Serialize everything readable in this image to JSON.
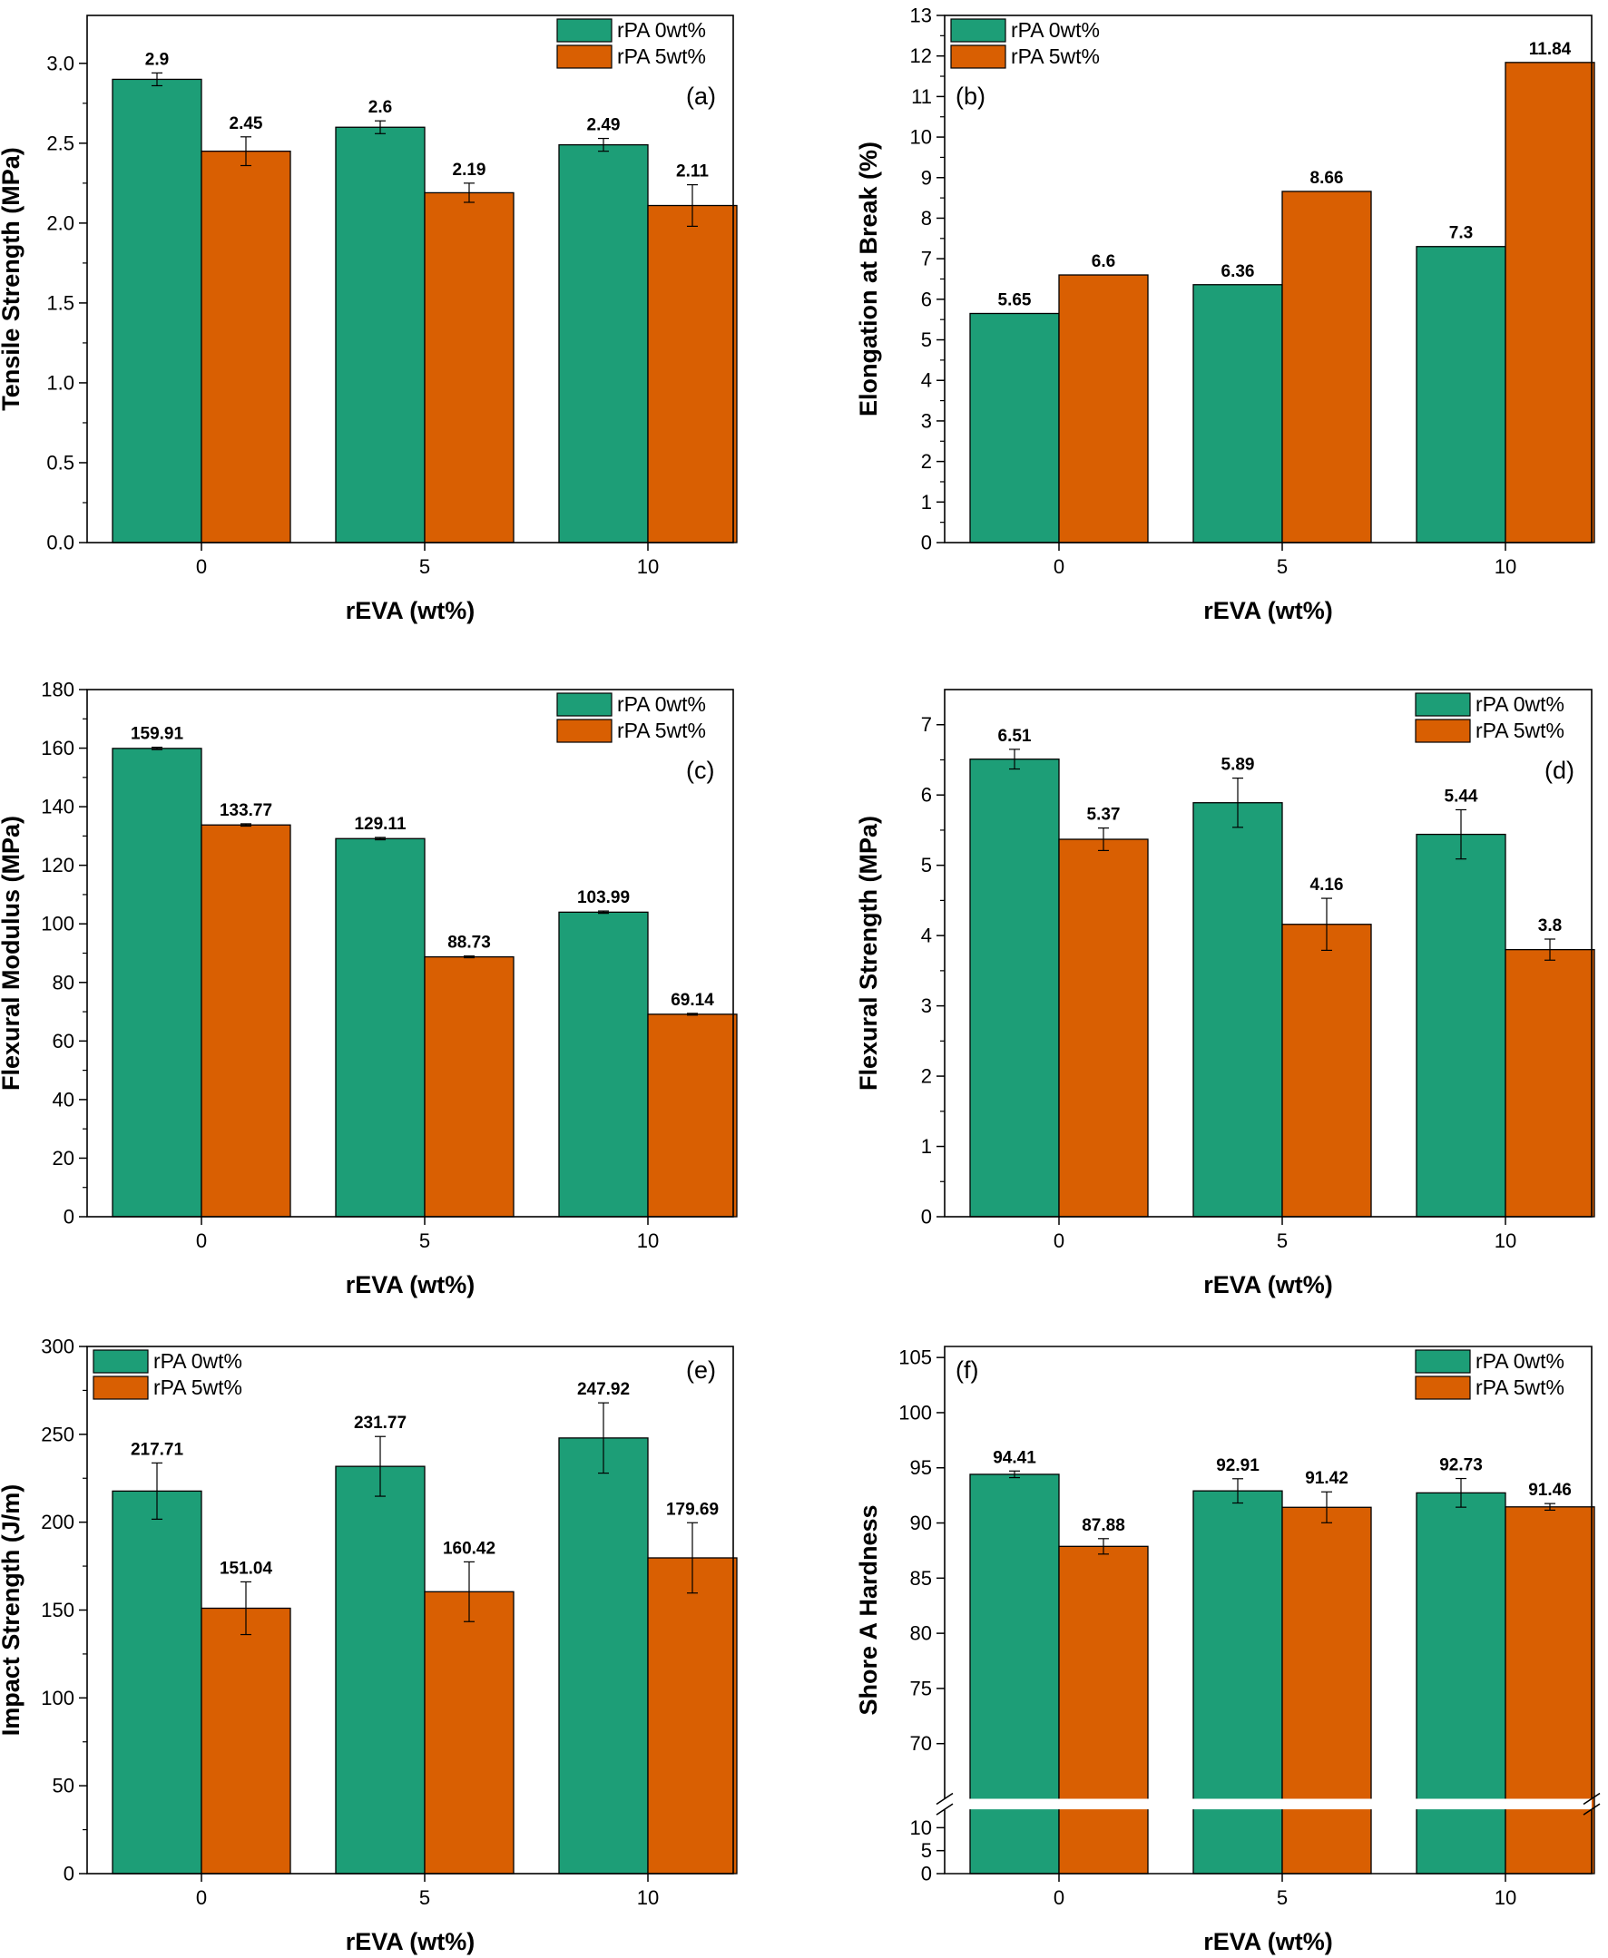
{
  "colors": {
    "series_0": "#1d9e77",
    "series_1": "#d95f02",
    "axis": "#000000",
    "background": "#ffffff"
  },
  "chart_data": [
    {
      "type": "bar",
      "panel_label": "(a)",
      "ylabel": "Tensile Strength (MPa)",
      "xlabel": "rEVA (wt%)",
      "categories": [
        "0",
        "5",
        "10"
      ],
      "ylim": [
        0,
        3.3
      ],
      "yticks": [
        "0.0",
        "0.5",
        "1.0",
        "1.5",
        "2.0",
        "2.5",
        "3.0"
      ],
      "legend_position": "top-right",
      "series": [
        {
          "name": "rPA 0wt%",
          "values": [
            2.9,
            2.6,
            2.49
          ],
          "labels": [
            "2.9",
            "2.6",
            "2.49"
          ],
          "errors": [
            0.04,
            0.04,
            0.04
          ]
        },
        {
          "name": "rPA 5wt%",
          "values": [
            2.45,
            2.19,
            2.11
          ],
          "labels": [
            "2.45",
            "2.19",
            "2.11"
          ],
          "errors": [
            0.09,
            0.06,
            0.13
          ]
        }
      ]
    },
    {
      "type": "bar",
      "panel_label": "(b)",
      "ylabel": "Elongation at Break (%)",
      "xlabel": "rEVA (wt%)",
      "categories": [
        "0",
        "5",
        "10"
      ],
      "ylim": [
        0,
        13
      ],
      "yticks": [
        "0",
        "1",
        "2",
        "3",
        "4",
        "5",
        "6",
        "7",
        "8",
        "9",
        "10",
        "11",
        "12",
        "13"
      ],
      "legend_position": "top-left",
      "series": [
        {
          "name": "rPA 0wt%",
          "values": [
            5.65,
            6.36,
            7.3
          ],
          "labels": [
            "5.65",
            "6.36",
            "7.3"
          ],
          "errors": [
            0,
            0,
            0
          ]
        },
        {
          "name": "rPA 5wt%",
          "values": [
            6.6,
            8.66,
            11.84
          ],
          "labels": [
            "6.6",
            "8.66",
            "11.84"
          ],
          "errors": [
            0,
            0,
            0
          ]
        }
      ]
    },
    {
      "type": "bar",
      "panel_label": "(c)",
      "ylabel": "Flexural Modulus (MPa)",
      "xlabel": "rEVA (wt%)",
      "categories": [
        "0",
        "5",
        "10"
      ],
      "ylim": [
        0,
        180
      ],
      "yticks": [
        "0",
        "20",
        "40",
        "60",
        "80",
        "100",
        "120",
        "140",
        "160",
        "180"
      ],
      "legend_position": "top-right",
      "series": [
        {
          "name": "rPA 0wt%",
          "values": [
            159.91,
            129.11,
            103.99
          ],
          "labels": [
            "159.91",
            "129.11",
            "103.99"
          ],
          "errors": [
            0.4,
            0.4,
            0.4
          ]
        },
        {
          "name": "rPA 5wt%",
          "values": [
            133.77,
            88.73,
            69.14
          ],
          "labels": [
            "133.77",
            "88.73",
            "69.14"
          ],
          "errors": [
            0.4,
            0.3,
            0.3
          ]
        }
      ]
    },
    {
      "type": "bar",
      "panel_label": "(d)",
      "ylabel": "Flexural Strength (MPa)",
      "xlabel": "rEVA (wt%)",
      "categories": [
        "0",
        "5",
        "10"
      ],
      "ylim": [
        0,
        7.5
      ],
      "yticks": [
        "0",
        "1",
        "2",
        "3",
        "4",
        "5",
        "6",
        "7"
      ],
      "legend_position": "top-right",
      "series": [
        {
          "name": "rPA 0wt%",
          "values": [
            6.51,
            5.89,
            5.44
          ],
          "labels": [
            "6.51",
            "5.89",
            "5.44"
          ],
          "errors": [
            0.14,
            0.35,
            0.35
          ]
        },
        {
          "name": "rPA 5wt%",
          "values": [
            5.37,
            4.16,
            3.8
          ],
          "labels": [
            "5.37",
            "4.16",
            "3.8"
          ],
          "errors": [
            0.16,
            0.37,
            0.15
          ]
        }
      ]
    },
    {
      "type": "bar",
      "panel_label": "(e)",
      "ylabel": "Impact Strength (J/m)",
      "xlabel": "rEVA (wt%)",
      "categories": [
        "0",
        "5",
        "10"
      ],
      "ylim": [
        0,
        300
      ],
      "yticks": [
        "0",
        "50",
        "100",
        "150",
        "200",
        "250",
        "300"
      ],
      "legend_position": "top-left",
      "series": [
        {
          "name": "rPA 0wt%",
          "values": [
            217.71,
            231.77,
            247.92
          ],
          "labels": [
            "217.71",
            "231.77",
            "247.92"
          ],
          "errors": [
            16,
            17,
            20
          ]
        },
        {
          "name": "rPA 5wt%",
          "values": [
            151.04,
            160.42,
            179.69
          ],
          "labels": [
            "151.04",
            "160.42",
            "179.69"
          ],
          "errors": [
            15,
            17,
            20
          ]
        }
      ]
    },
    {
      "type": "bar",
      "panel_label": "(f)",
      "ylabel": "Shore A Hardness",
      "xlabel": "rEVA (wt%)",
      "categories": [
        "0",
        "5",
        "10"
      ],
      "axis_break": [
        12,
        65
      ],
      "ylim_lower": [
        0,
        14
      ],
      "ylim_upper": [
        65,
        106
      ],
      "yticks_lower": [
        "0",
        "5",
        "10"
      ],
      "yticks_upper": [
        "70",
        "75",
        "80",
        "85",
        "90",
        "95",
        "100",
        "105"
      ],
      "legend_position": "top-right",
      "series": [
        {
          "name": "rPA 0wt%",
          "values": [
            94.41,
            92.91,
            92.73
          ],
          "labels": [
            "94.41",
            "92.91",
            "92.73"
          ],
          "errors": [
            0.3,
            1.1,
            1.3
          ]
        },
        {
          "name": "rPA 5wt%",
          "values": [
            87.88,
            91.42,
            91.46
          ],
          "labels": [
            "87.88",
            "91.42",
            "91.46"
          ],
          "errors": [
            0.7,
            1.4,
            0.3
          ]
        }
      ]
    }
  ]
}
